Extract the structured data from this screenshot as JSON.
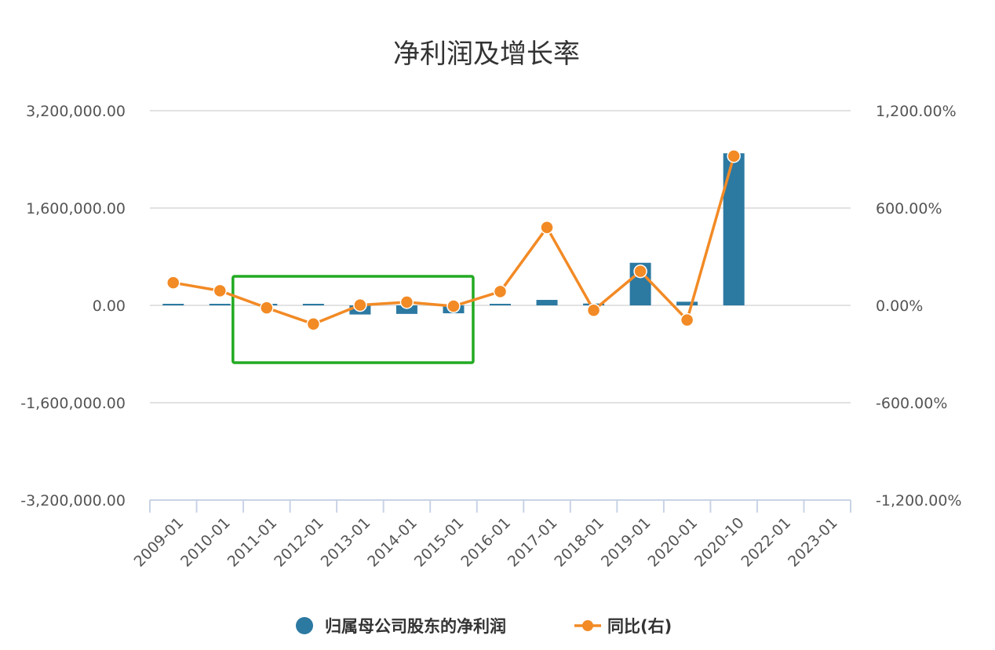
{
  "chart_data": {
    "type": "bar",
    "title": "净利润及增长率",
    "categories": [
      "2009-01",
      "2010-01",
      "2011-01",
      "2012-01",
      "2013-01",
      "2014-01",
      "2015-01",
      "2016-01",
      "2017-01",
      "2018-01",
      "2019-01",
      "2020-01",
      "2020-10",
      "2022-01",
      "2023-01"
    ],
    "y_left": {
      "ticks": [
        "3,200,000.00",
        "1,600,000.00",
        "0.00",
        "-1,600,000.00",
        "-3,200,000.00"
      ],
      "ylim": [
        -3200000,
        3200000
      ]
    },
    "y_right": {
      "ticks": [
        "1,200.00%",
        "600.00%",
        "0.00%",
        "-600.00%",
        "-1,200.00%"
      ],
      "ylim": [
        -1200,
        1200
      ]
    },
    "series": [
      {
        "name": "归属母公司股东的净利润",
        "type": "bar",
        "axis": "left",
        "color": "#2c79a2",
        "values": [
          6000,
          25000,
          -5000,
          -10000,
          -150000,
          -140000,
          -130000,
          -20000,
          90000,
          30000,
          700000,
          60000,
          2500000,
          null,
          null
        ]
      },
      {
        "name": "同比(右)",
        "type": "line",
        "axis": "right",
        "color": "#f28a25",
        "values": [
          140,
          90,
          -15,
          -115,
          2,
          20,
          -5,
          85,
          480,
          -30,
          210,
          -90,
          920,
          null,
          null
        ]
      }
    ],
    "grid": true,
    "legend": "bottom-center",
    "annotation": {
      "shape": "rectangle",
      "color": "#22aa22",
      "from": "2011-01",
      "to": "2015-01"
    }
  }
}
